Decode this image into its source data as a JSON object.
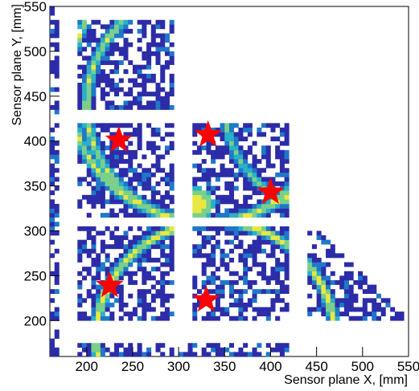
{
  "chart_data": {
    "type": "heatmap",
    "title": "",
    "xlabel": "Sensor plane X, [mm]",
    "ylabel": "Sensor plane Y, [mm]",
    "xlim": [
      160,
      550
    ],
    "ylim": [
      160,
      550
    ],
    "x_ticks": [
      200,
      250,
      300,
      350,
      400,
      450,
      500,
      550
    ],
    "y_ticks": [
      200,
      250,
      300,
      350,
      400,
      450,
      500,
      550
    ],
    "colormap": [
      "#2c2ca8",
      "#1f78c8",
      "#2ab0c8",
      "#7ad08a",
      "#e8e840"
    ],
    "sensor_tiles": [
      {
        "x": [
          160,
          170
        ],
        "y": [
          430,
          550
        ]
      },
      {
        "x": [
          190,
          295
        ],
        "y": [
          435,
          535
        ]
      },
      {
        "x": [
          190,
          295
        ],
        "y": [
          315,
          420
        ]
      },
      {
        "x": [
          315,
          420
        ],
        "y": [
          315,
          420
        ]
      },
      {
        "x": [
          190,
          295
        ],
        "y": [
          200,
          305
        ]
      },
      {
        "x": [
          315,
          420
        ],
        "y": [
          200,
          305
        ]
      },
      {
        "x": [
          440,
          545
        ],
        "y": [
          200,
          305
        ]
      },
      {
        "x": [
          160,
          170
        ],
        "y": [
          160,
          420
        ]
      },
      {
        "x": [
          190,
          420
        ],
        "y": [
          160,
          172
        ]
      }
    ],
    "rings": [
      {
        "cx": 330,
        "cy": 460,
        "r": 150,
        "intensity": 0.9
      },
      {
        "cx": 330,
        "cy": 440,
        "r": 130,
        "intensity": 0.85
      },
      {
        "cx": 340,
        "cy": 180,
        "r": 130,
        "intensity": 0.95
      },
      {
        "cx": 470,
        "cy": 440,
        "r": 120,
        "intensity": 0.7
      }
    ],
    "hotspot": {
      "x": 320,
      "y": 330,
      "r": 18
    },
    "markers": [
      {
        "x": 235,
        "y": 401
      },
      {
        "x": 332,
        "y": 407
      },
      {
        "x": 400,
        "y": 343
      },
      {
        "x": 225,
        "y": 239
      },
      {
        "x": 330,
        "y": 223
      }
    ],
    "marker_color": "#ff0000"
  }
}
